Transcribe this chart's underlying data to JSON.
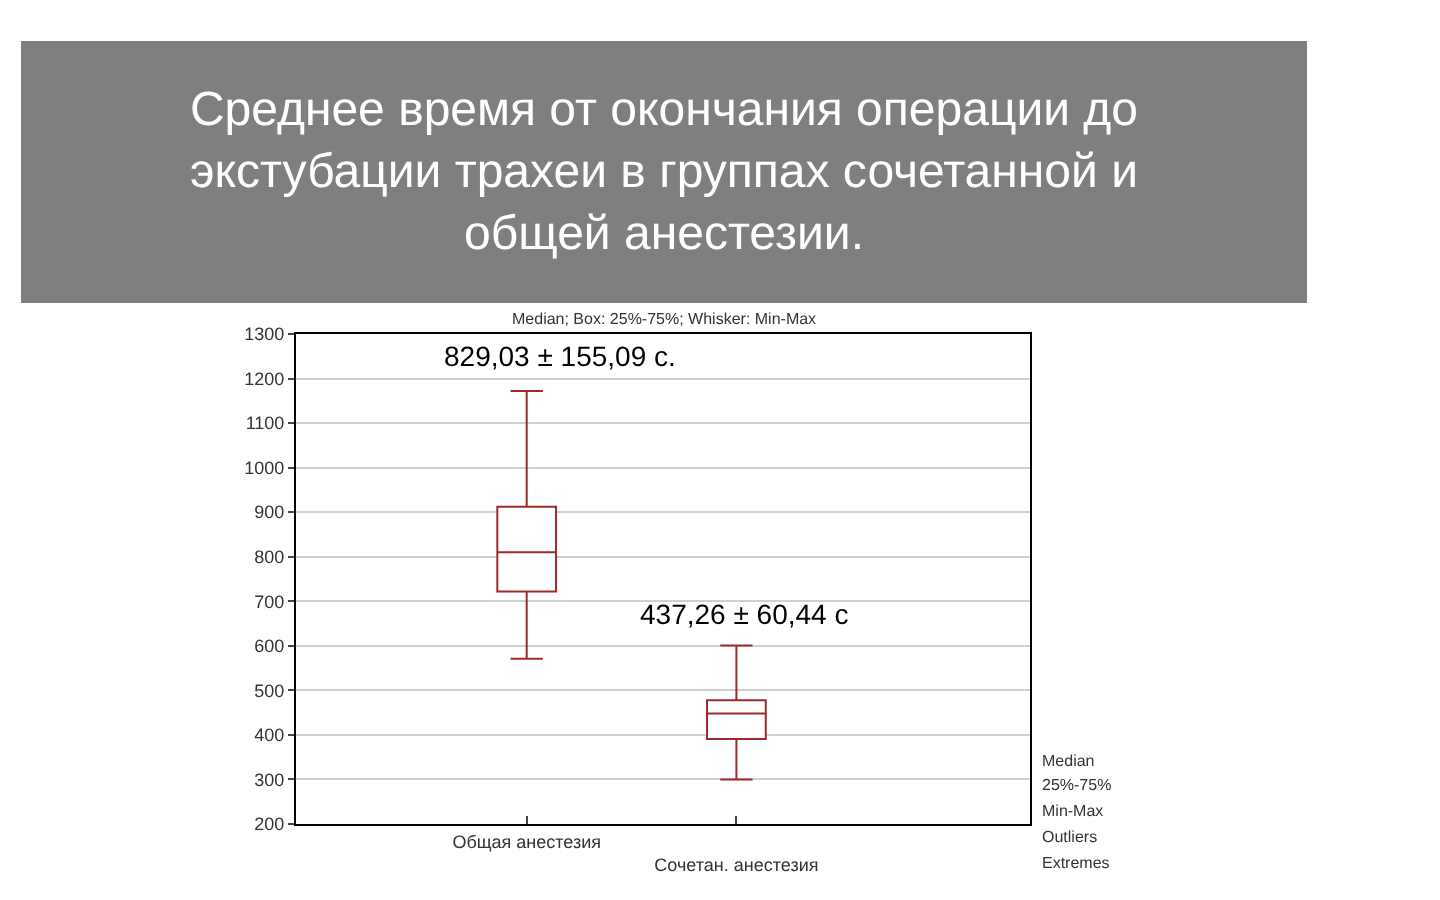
{
  "chart_data": {
    "type": "box",
    "title": "Среднее время от окончания операции до экстубации трахеи в группах сочетанной и общей анестезии.",
    "subtitle": "Median; Box: 25%-75%; Whisker: Min-Max",
    "categories": [
      "Общая анестезия",
      "Сочетан. анестезия"
    ],
    "boxes": [
      {
        "low": 571,
        "q1": 722,
        "median": 810,
        "q3": 912,
        "high": 1172
      },
      {
        "low": 300,
        "q1": 391,
        "median": 448,
        "q3": 478,
        "high": 601
      }
    ],
    "color": "#9c2a2a",
    "ylim": [
      200,
      1300
    ],
    "yticks": [
      200,
      300,
      400,
      500,
      600,
      700,
      800,
      900,
      1000,
      1100,
      1200,
      1300
    ],
    "grid": "y",
    "annotations": [
      "829,03 ± 155,09 с.",
      "437,26 ± 60,44 с",
      "Median",
      "25%-75%",
      "Min-Max",
      "Outliers",
      "Extremes"
    ]
  }
}
